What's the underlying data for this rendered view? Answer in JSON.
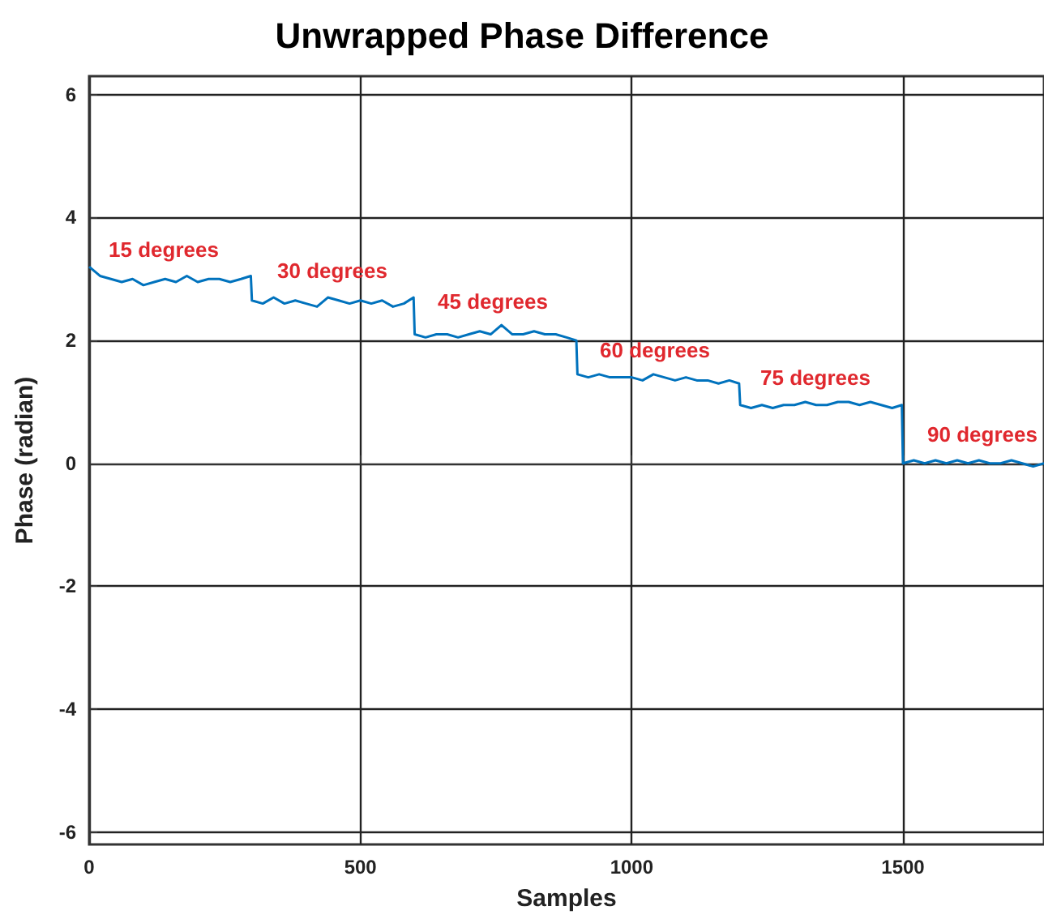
{
  "chart_data": {
    "type": "line",
    "title": "Unwrapped Phase Difference",
    "xlabel": "Samples",
    "ylabel": "Phase (radian)",
    "x": [
      0,
      20,
      40,
      60,
      80,
      100,
      120,
      140,
      160,
      180,
      200,
      220,
      240,
      260,
      280,
      298,
      300,
      320,
      340,
      360,
      380,
      400,
      420,
      440,
      460,
      480,
      500,
      520,
      540,
      560,
      580,
      598,
      600,
      620,
      640,
      660,
      680,
      700,
      720,
      740,
      760,
      780,
      800,
      820,
      840,
      860,
      880,
      898,
      900,
      920,
      940,
      960,
      980,
      1000,
      1020,
      1040,
      1060,
      1080,
      1100,
      1120,
      1140,
      1160,
      1180,
      1198,
      1200,
      1220,
      1240,
      1260,
      1280,
      1300,
      1320,
      1340,
      1360,
      1380,
      1400,
      1420,
      1440,
      1460,
      1480,
      1498,
      1500,
      1520,
      1540,
      1560,
      1580,
      1600,
      1620,
      1640,
      1660,
      1680,
      1700,
      1720,
      1740,
      1760
    ],
    "series": [
      {
        "color": "#0072bd",
        "values": [
          3.2,
          3.05,
          3.0,
          2.95,
          3.0,
          2.9,
          2.95,
          3.0,
          2.95,
          3.05,
          2.95,
          3.0,
          3.0,
          2.95,
          3.0,
          3.05,
          2.65,
          2.6,
          2.7,
          2.6,
          2.65,
          2.6,
          2.55,
          2.7,
          2.65,
          2.6,
          2.65,
          2.6,
          2.65,
          2.55,
          2.6,
          2.7,
          2.1,
          2.05,
          2.1,
          2.1,
          2.05,
          2.1,
          2.15,
          2.1,
          2.25,
          2.1,
          2.1,
          2.15,
          2.1,
          2.1,
          2.05,
          2.0,
          1.45,
          1.4,
          1.45,
          1.4,
          1.4,
          1.4,
          1.35,
          1.45,
          1.4,
          1.35,
          1.4,
          1.35,
          1.35,
          1.3,
          1.35,
          1.3,
          0.95,
          0.9,
          0.95,
          0.9,
          0.95,
          0.95,
          1.0,
          0.95,
          0.95,
          1.0,
          1.0,
          0.95,
          1.0,
          0.95,
          0.9,
          0.95,
          0.0,
          0.05,
          0.0,
          0.05,
          0.0,
          0.05,
          0.0,
          0.05,
          0.0,
          0.0,
          0.05,
          0.0,
          -0.05,
          0.0
        ]
      }
    ],
    "xlim": [
      0,
      1760
    ],
    "ylim": [
      -6.2,
      6.3
    ],
    "xticks": [
      0,
      500,
      1000,
      1500
    ],
    "yticks": [
      -6,
      -4,
      -2,
      0,
      2,
      4,
      6
    ],
    "grid": true,
    "marker": "none",
    "line_style": "solid",
    "annotations": [
      "15 degrees",
      "30 degrees",
      "45 degrees",
      "60 degrees",
      "75 degrees",
      "90 degrees"
    ]
  }
}
